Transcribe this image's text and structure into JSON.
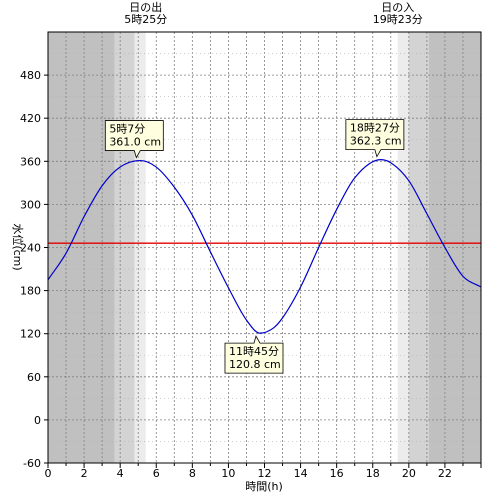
{
  "chart_data": {
    "type": "line",
    "title": "",
    "xlabel": "時間(h)",
    "ylabel": "水位(cm)",
    "xlim": [
      0,
      24
    ],
    "ylim": [
      -60,
      540
    ],
    "xticks": [
      0,
      2,
      4,
      6,
      8,
      10,
      12,
      14,
      16,
      18,
      20,
      22
    ],
    "yticks": [
      -60,
      0,
      60,
      120,
      180,
      240,
      300,
      360,
      420,
      480
    ],
    "grid": true,
    "colors": {
      "tide_line": "#0000cc",
      "reference_line": "#e00000",
      "night": "#c0c0c0",
      "twilight_dark": "#d3d3d3",
      "twilight_light": "#ececec"
    },
    "reference_level": 246,
    "series": [
      {
        "x": [
          0,
          1,
          2,
          3,
          4,
          5.1167,
          6,
          7,
          8,
          9,
          10,
          11,
          11.75,
          12.5,
          13,
          14,
          15,
          16,
          17,
          18.45,
          19,
          20,
          21,
          22,
          23,
          24
        ],
        "values": [
          195,
          232,
          283,
          326,
          352,
          361.0,
          352,
          324,
          285,
          234,
          184,
          139,
          120.8,
          128,
          142,
          185,
          240,
          293,
          337,
          362.3,
          358,
          333,
          287,
          240,
          200,
          185
        ]
      }
    ],
    "sun": {
      "sunrise": {
        "label": "日の出",
        "time_label": "5時25分",
        "hour": 5.4167
      },
      "sunset": {
        "label": "日の入",
        "time_label": "19時23分",
        "hour": 19.3833
      }
    },
    "shading": [
      {
        "from": 0,
        "to": 3.7,
        "tone": "night"
      },
      {
        "from": 3.7,
        "to": 4.8,
        "tone": "twilight_dark"
      },
      {
        "from": 4.8,
        "to": 5.4167,
        "tone": "twilight_light"
      },
      {
        "from": 19.3833,
        "to": 20.0,
        "tone": "twilight_light"
      },
      {
        "from": 20.0,
        "to": 21.1,
        "tone": "twilight_dark"
      },
      {
        "from": 21.1,
        "to": 24,
        "tone": "night"
      }
    ],
    "annotations": [
      {
        "time": "5時7分",
        "level": "361.0 cm",
        "x": 5.1167,
        "y": 361.0,
        "side": "above"
      },
      {
        "time": "11時45分",
        "level": "120.8 cm",
        "x": 11.75,
        "y": 120.8,
        "side": "below"
      },
      {
        "time": "18時27分",
        "level": "362.3 cm",
        "x": 18.45,
        "y": 362.3,
        "side": "above"
      }
    ]
  }
}
